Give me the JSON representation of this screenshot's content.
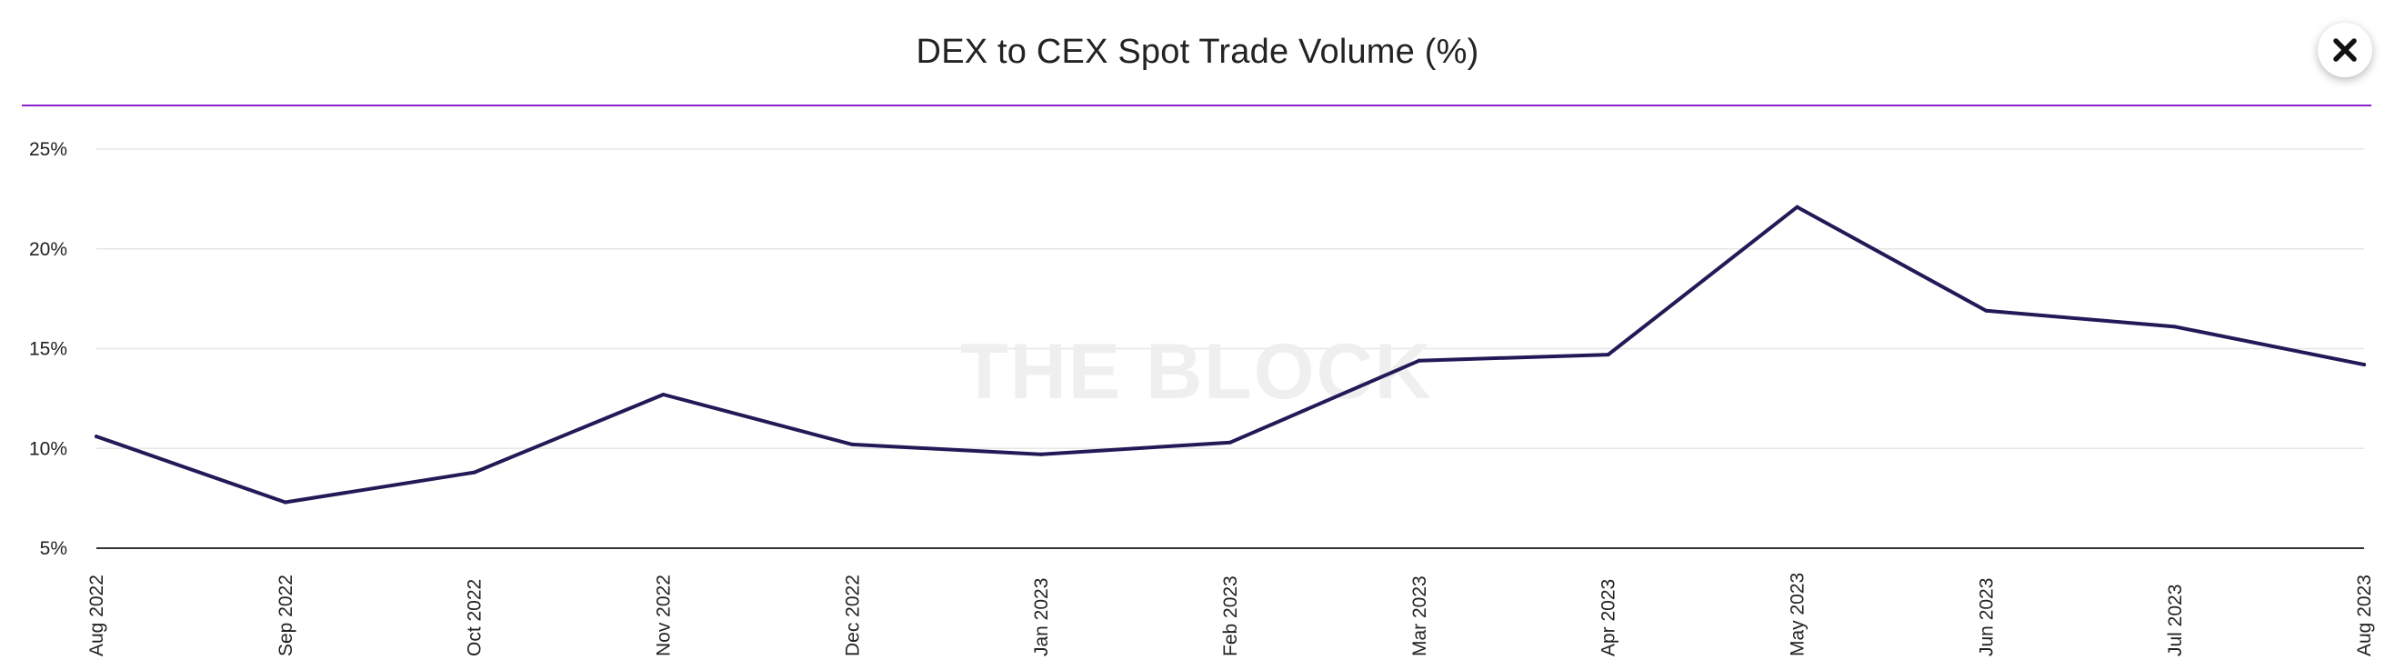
{
  "header": {
    "title": "DEX to CEX Spot Trade Volume (%)",
    "close_icon": "close-icon"
  },
  "watermark": {
    "text": "THE BLOCK"
  },
  "colors": {
    "line": "#211a57",
    "divider": "#8b21c9",
    "grid": "#e6e6e6",
    "axis": "#333333",
    "watermark": "#efefef"
  },
  "chart_data": {
    "type": "line",
    "title": "DEX to CEX Spot Trade Volume (%)",
    "xlabel": "",
    "ylabel": "",
    "categories": [
      "Aug 2022",
      "Sep 2022",
      "Oct 2022",
      "Nov 2022",
      "Dec 2022",
      "Jan 2023",
      "Feb 2023",
      "Mar 2023",
      "Apr 2023",
      "May 2023",
      "Jun 2023",
      "Jul 2023",
      "Aug 2023"
    ],
    "series": [
      {
        "values": [
          10.6,
          7.3,
          8.8,
          12.7,
          10.2,
          9.7,
          10.3,
          14.4,
          14.7,
          22.1,
          16.9,
          16.1,
          14.2
        ]
      }
    ],
    "ylim": [
      5,
      25
    ],
    "yticks": [
      5,
      10,
      15,
      20,
      25
    ],
    "ytick_labels": [
      "5%",
      "10%",
      "15%",
      "20%",
      "25%"
    ],
    "grid": "horizontal",
    "legend": "none"
  }
}
